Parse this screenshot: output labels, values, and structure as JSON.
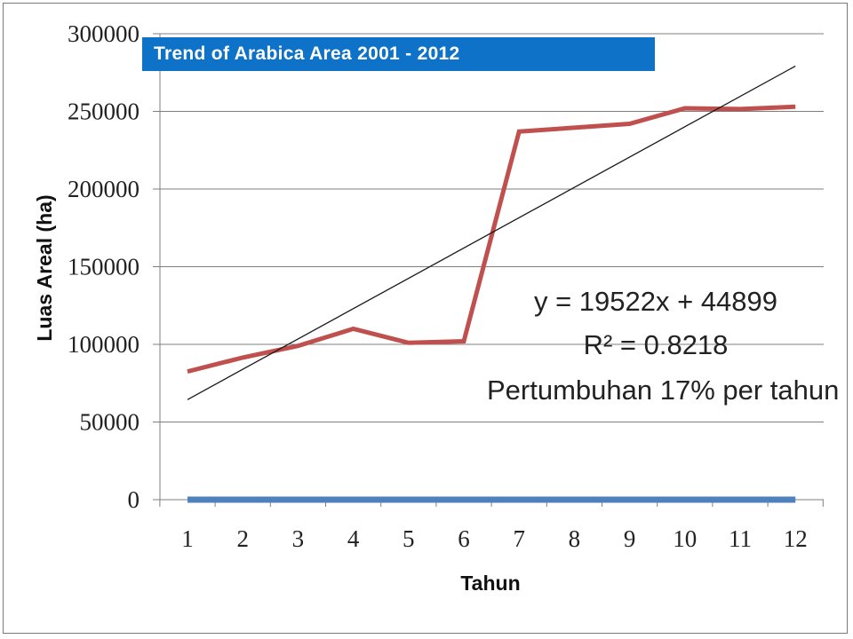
{
  "chart_data": {
    "type": "line",
    "title": "Trend of Arabica Area 2001 - 2012",
    "xlabel": "Tahun",
    "ylabel": "Luas Areal (ha)",
    "ylim": [
      0,
      300000
    ],
    "yticks": [
      "0",
      "50000",
      "100000",
      "150000",
      "200000",
      "250000",
      "300000"
    ],
    "x": [
      1,
      2,
      3,
      4,
      5,
      6,
      7,
      8,
      9,
      10,
      11,
      12
    ],
    "xticks": [
      "1",
      "2",
      "3",
      "4",
      "5",
      "6",
      "7",
      "8",
      "9",
      "10",
      "11",
      "12"
    ],
    "grid": "horizontal",
    "series": [
      {
        "color": "#c0504d",
        "values": [
          82500,
          91500,
          99000,
          110000,
          101000,
          102000,
          237000,
          239500,
          242000,
          252000,
          251500,
          253000
        ]
      },
      {
        "color": "#4f81bd",
        "values": [
          0,
          0,
          0,
          0,
          0,
          0,
          0,
          0,
          0,
          0,
          0,
          0
        ]
      }
    ],
    "trendline": {
      "color": "#1a1a1a",
      "slope": 19522,
      "intercept": 44899
    },
    "annotations": {
      "equation": "y = 19522x + 44899",
      "r2": "R² = 0.8218",
      "growth": "Pertumbuhan 17% per tahun"
    }
  }
}
